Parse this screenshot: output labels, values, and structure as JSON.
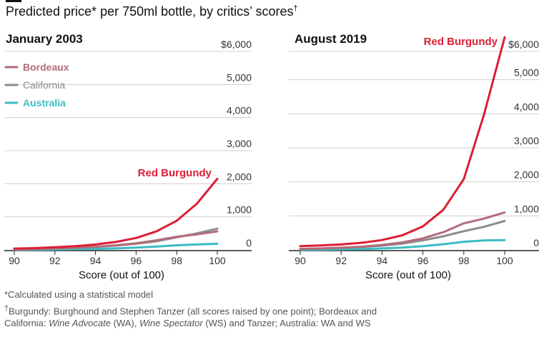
{
  "title": "Predicted price* per 750ml bottle, by critics’ scores",
  "title_mark": "†",
  "colors": {
    "red_burgundy": "#dc1e35",
    "bordeaux": "#b36b7a",
    "california": "#8c8c8c",
    "australia": "#3bbcc3",
    "gridline": "#cfcfcf",
    "axis": "#222222"
  },
  "chart_data": [
    {
      "type": "line",
      "title": "January 2003",
      "xlabel": "Score (out of 100)",
      "ylabel": "",
      "x": [
        90,
        91,
        92,
        93,
        94,
        95,
        96,
        97,
        98,
        99,
        100
      ],
      "xticks": [
        "90",
        "92",
        "94",
        "96",
        "98",
        "100"
      ],
      "yticks": [
        "$6,000",
        "5,000",
        "4,000",
        "3,000",
        "2,000",
        "1,000",
        "0"
      ],
      "ylim": [
        0,
        6000
      ],
      "xlim": [
        90,
        100
      ],
      "grid": true,
      "legend": "top-left",
      "series": [
        {
          "name": "Red Burgundy",
          "color_key": "red_burgundy",
          "values": [
            40,
            55,
            80,
            115,
            165,
            240,
            360,
            560,
            880,
            1400,
            2150
          ]
        },
        {
          "name": "Bordeaux",
          "color_key": "bordeaux",
          "values": [
            20,
            30,
            45,
            65,
            95,
            140,
            200,
            290,
            400,
            470,
            560
          ]
        },
        {
          "name": "California",
          "color_key": "california",
          "values": [
            18,
            28,
            42,
            62,
            90,
            130,
            185,
            260,
            380,
            500,
            640
          ]
        },
        {
          "name": "Australia",
          "color_key": "australia",
          "values": [
            5,
            8,
            12,
            20,
            30,
            45,
            70,
            100,
            140,
            165,
            185
          ]
        }
      ]
    },
    {
      "type": "line",
      "title": "August 2019",
      "xlabel": "Score (out of 100)",
      "ylabel": "",
      "x": [
        90,
        91,
        92,
        93,
        94,
        95,
        96,
        97,
        98,
        99,
        100
      ],
      "xticks": [
        "90",
        "92",
        "94",
        "96",
        "98",
        "100"
      ],
      "yticks": [
        "$6,000",
        "5,000",
        "4,000",
        "3,000",
        "2,000",
        "1,000",
        "0"
      ],
      "ylim": [
        0,
        6000
      ],
      "xlim": [
        90,
        100
      ],
      "grid": true,
      "series": [
        {
          "name": "Red Burgundy",
          "color_key": "red_burgundy",
          "values": [
            110,
            130,
            160,
            210,
            290,
            430,
            690,
            1180,
            2080,
            4000,
            6250
          ]
        },
        {
          "name": "Bordeaux",
          "color_key": "bordeaux",
          "values": [
            30,
            45,
            65,
            95,
            145,
            220,
            340,
            520,
            780,
            920,
            1100
          ]
        },
        {
          "name": "California",
          "color_key": "california",
          "values": [
            25,
            40,
            60,
            85,
            125,
            185,
            280,
            400,
            550,
            680,
            850
          ]
        },
        {
          "name": "Australia",
          "color_key": "australia",
          "values": [
            5,
            8,
            15,
            25,
            45,
            70,
            110,
            165,
            240,
            280,
            290
          ]
        }
      ]
    }
  ],
  "legend": [
    {
      "label": "Bordeaux",
      "color_key": "bordeaux"
    },
    {
      "label": "California",
      "color_key": "california"
    },
    {
      "label": "Australia",
      "color_key": "australia"
    }
  ],
  "annotations": {
    "red_burgundy_label": "Red Burgundy"
  },
  "notes": {
    "line1": "*Calculated using a statistical model",
    "line2_mark": "†",
    "line2": "Burgundy: Burghound and Stephen Tanzer (all scores raised by one point); Bordeaux and",
    "line3_pre": "California: ",
    "line3_wa": "Wine Advocate",
    "line3_mid": " (WA), ",
    "line3_ws": "Wine Spectator",
    "line3_post": " (WS) and Tanzer; Australia: WA and WS"
  }
}
